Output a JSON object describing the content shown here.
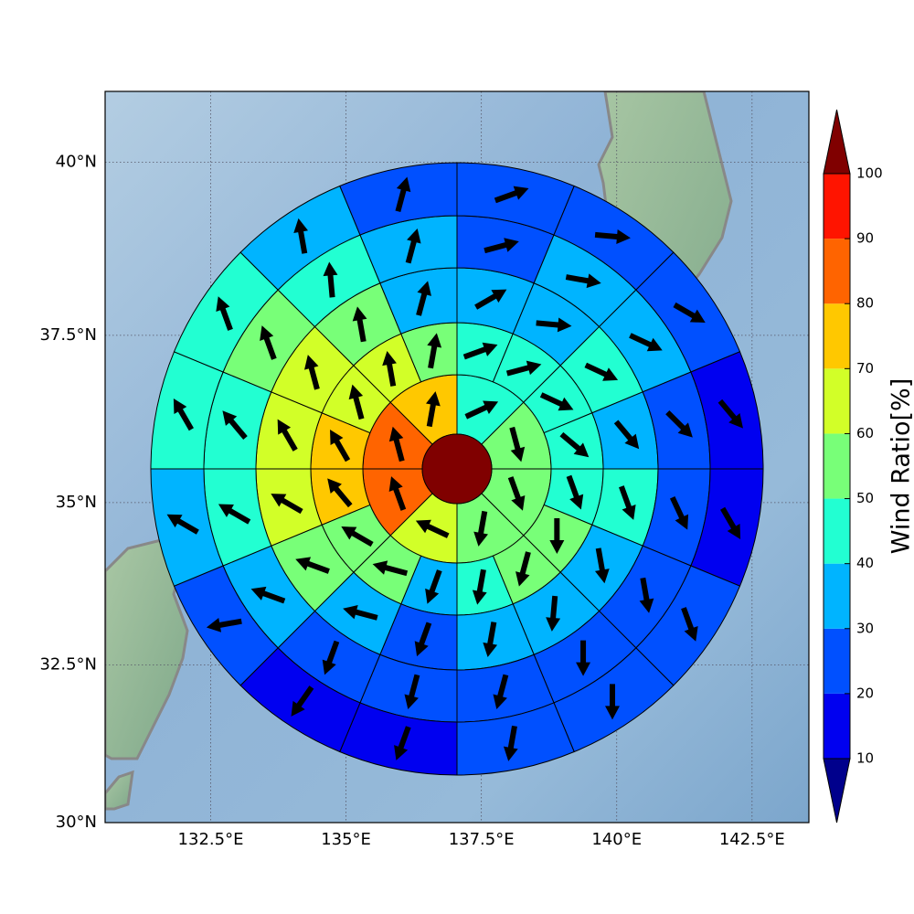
{
  "chart_data": {
    "type": "polar-grid-map",
    "xlim": [
      130.55,
      143.55
    ],
    "ylim": [
      30,
      41
    ],
    "xticks": [
      {
        "value": 132.5,
        "label": "132.5°E"
      },
      {
        "value": 135,
        "label": "135°E"
      },
      {
        "value": 137.5,
        "label": "137.5°E"
      },
      {
        "value": 140,
        "label": "140°E"
      },
      {
        "value": 142.5,
        "label": "142.5°E"
      }
    ],
    "yticks": [
      {
        "value": 30,
        "label": "30°N"
      },
      {
        "value": 32.5,
        "label": "32.5°N"
      },
      {
        "value": 35,
        "label": "35°N"
      },
      {
        "value": 37.5,
        "label": "37.5°N"
      },
      {
        "value": 40,
        "label": "40°N"
      }
    ],
    "grid": true,
    "center_value": 100,
    "rings": [
      {
        "values": [
          45,
          55,
          55,
          55,
          65,
          85,
          85,
          75
        ],
        "directions": [
          65,
          165,
          160,
          190,
          295,
          340,
          345,
          10
        ]
      },
      {
        "values": [
          45,
          45,
          45,
          45,
          45,
          55,
          55,
          45,
          35,
          55,
          55,
          75,
          75,
          65,
          65,
          55
        ],
        "directions": [
          70,
          75,
          115,
          130,
          160,
          180,
          195,
          190,
          200,
          285,
          300,
          320,
          330,
          345,
          350,
          10
        ]
      },
      {
        "values": [
          35,
          35,
          45,
          35,
          45,
          35,
          35,
          35,
          25,
          35,
          55,
          65,
          65,
          65,
          55,
          35
        ],
        "directions": [
          60,
          95,
          115,
          140,
          160,
          170,
          185,
          190,
          200,
          285,
          290,
          300,
          330,
          345,
          350,
          15
        ]
      },
      {
        "values": [
          25,
          35,
          35,
          25,
          25,
          25,
          25,
          25,
          25,
          25,
          35,
          45,
          45,
          55,
          45,
          35
        ],
        "directions": [
          75,
          100,
          115,
          135,
          155,
          170,
          180,
          195,
          195,
          200,
          290,
          300,
          320,
          340,
          355,
          15
        ]
      },
      {
        "values": [
          25,
          25,
          25,
          15,
          15,
          25,
          25,
          25,
          15,
          15,
          25,
          35,
          45,
          45,
          35,
          25
        ],
        "directions": [
          70,
          95,
          120,
          140,
          150,
          160,
          180,
          190,
          200,
          215,
          260,
          300,
          330,
          340,
          350,
          15
        ]
      }
    ],
    "colorbar": {
      "label": "Wind Ratio[%]",
      "levels": [
        10,
        20,
        30,
        40,
        50,
        60,
        70,
        80,
        90,
        100
      ],
      "colors": [
        "#0000f0",
        "#0050ff",
        "#00b4ff",
        "#22ffd2",
        "#78ff78",
        "#d2ff28",
        "#ffc800",
        "#ff6400",
        "#ff1400"
      ],
      "under_color": "#00008c",
      "over_color": "#800000"
    }
  }
}
